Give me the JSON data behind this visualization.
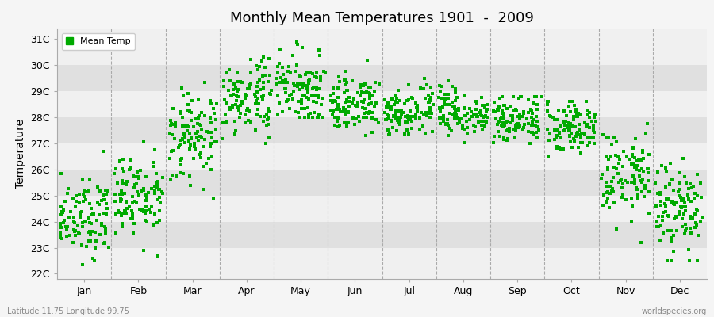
{
  "title": "Monthly Mean Temperatures 1901  -  2009",
  "ylabel": "Temperature",
  "xlabel_months": [
    "Jan",
    "Feb",
    "Mar",
    "Apr",
    "May",
    "Jun",
    "Jul",
    "Aug",
    "Sep",
    "Oct",
    "Nov",
    "Dec"
  ],
  "ytick_labels": [
    "22C",
    "23C",
    "24C",
    "25C",
    "26C",
    "27C",
    "28C",
    "29C",
    "30C",
    "31C"
  ],
  "ytick_values": [
    22,
    23,
    24,
    25,
    26,
    27,
    28,
    29,
    30,
    31
  ],
  "ylim": [
    21.8,
    31.4
  ],
  "bg_light": "#F0F0F0",
  "bg_dark": "#E0E0E0",
  "legend_label": "Mean Temp",
  "dot_color": "#00AA00",
  "bottom_left": "Latitude 11.75 Longitude 99.75",
  "bottom_right": "worldspecies.org",
  "n_years": 109,
  "monthly_means": [
    24.2,
    24.9,
    27.2,
    28.7,
    29.1,
    28.5,
    28.2,
    28.2,
    28.0,
    27.7,
    25.8,
    24.5
  ],
  "monthly_stds": [
    0.75,
    0.85,
    0.85,
    0.75,
    0.65,
    0.55,
    0.45,
    0.45,
    0.48,
    0.55,
    0.85,
    0.95
  ],
  "monthly_mins": [
    22.0,
    22.5,
    24.8,
    27.0,
    28.0,
    27.0,
    26.8,
    27.0,
    27.0,
    26.5,
    23.2,
    22.5
  ],
  "monthly_maxs": [
    27.5,
    28.2,
    30.2,
    30.5,
    30.9,
    30.5,
    29.5,
    29.4,
    28.8,
    28.6,
    28.7,
    27.8
  ],
  "seed": 12
}
